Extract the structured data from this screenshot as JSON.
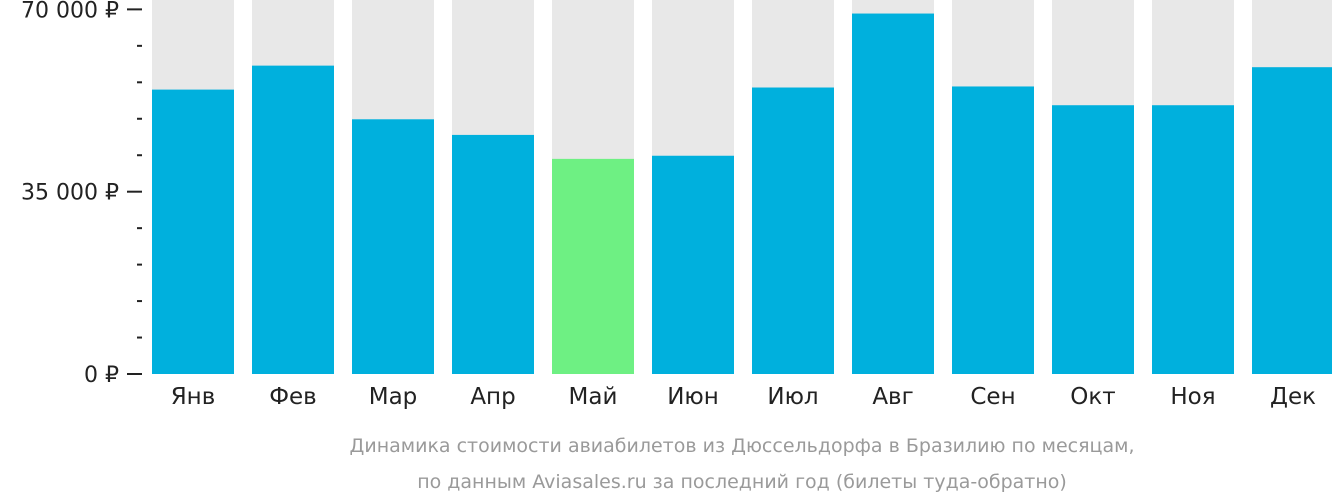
{
  "chart_data": {
    "type": "bar",
    "categories": [
      "Янв",
      "Фев",
      "Мар",
      "Апр",
      "Май",
      "Июн",
      "Июл",
      "Авг",
      "Сен",
      "Окт",
      "Ноя",
      "Дек"
    ],
    "values": [
      54600,
      59200,
      48900,
      45900,
      41300,
      41900,
      55000,
      69200,
      55200,
      51600,
      51600,
      58900
    ],
    "ylim": [
      0,
      71800
    ],
    "yticks": [
      {
        "value": 0,
        "label": "0 ₽"
      },
      {
        "value": 35000,
        "label": "35 000 ₽"
      },
      {
        "value": 70000,
        "label": "70 000 ₽"
      }
    ],
    "minor_tick_step": 7000,
    "highlight_category": "Май",
    "caption_lines": [
      "Динамика стоимости авиабилетов из Дюссельдорфа в Бразилию по месяцам,",
      "по данным Aviasales.ru за последний год (билеты туда-обратно)"
    ],
    "colors": {
      "bar": "#00b0dd",
      "highlight": "#6ef083",
      "background_bar": "#e8e8e8",
      "axis": "#222222",
      "caption": "#9a9a9a"
    },
    "grid": false,
    "legend": "none"
  }
}
